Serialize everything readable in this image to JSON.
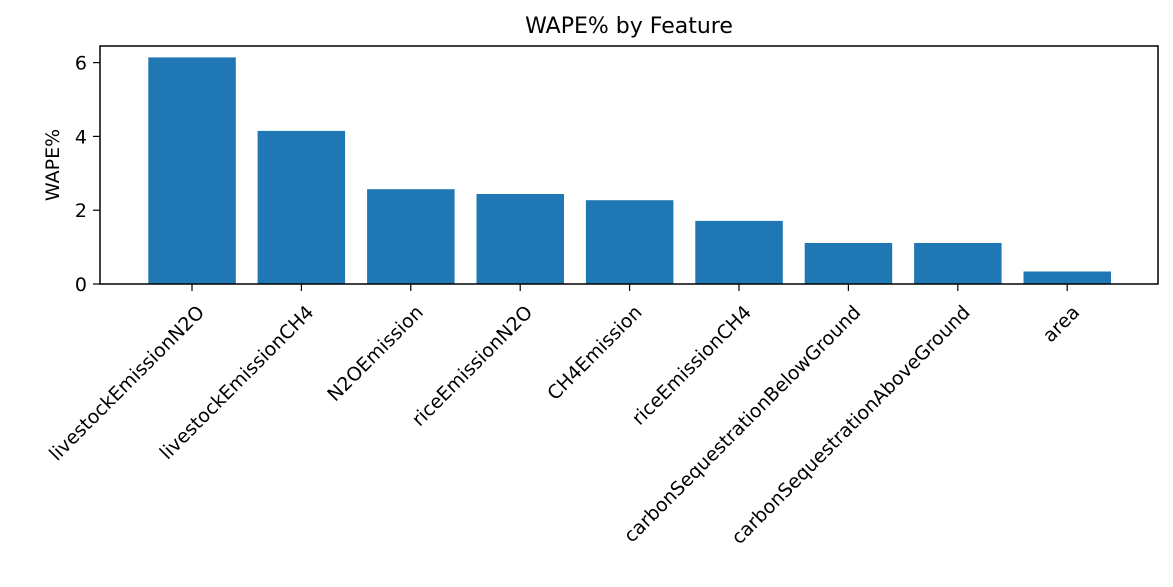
{
  "chart_data": {
    "type": "bar",
    "title": "WAPE% by Feature",
    "xlabel": "",
    "ylabel": "WAPE%",
    "categories": [
      "livestockEmissionN2O",
      "livestockEmissionCH4",
      "N2OEmission",
      "riceEmissionN2O",
      "CH4Emission",
      "riceEmissionCH4",
      "carbonSequestrationBelowGround",
      "carbonSequestrationAboveGround",
      "area"
    ],
    "values": [
      6.14,
      4.15,
      2.57,
      2.44,
      2.27,
      1.71,
      1.11,
      1.11,
      0.34
    ],
    "ylim": [
      0,
      6.45
    ],
    "yticks": [
      0,
      2,
      4,
      6
    ],
    "grid": false,
    "legend": false,
    "bar_color": "#1f77b4"
  }
}
